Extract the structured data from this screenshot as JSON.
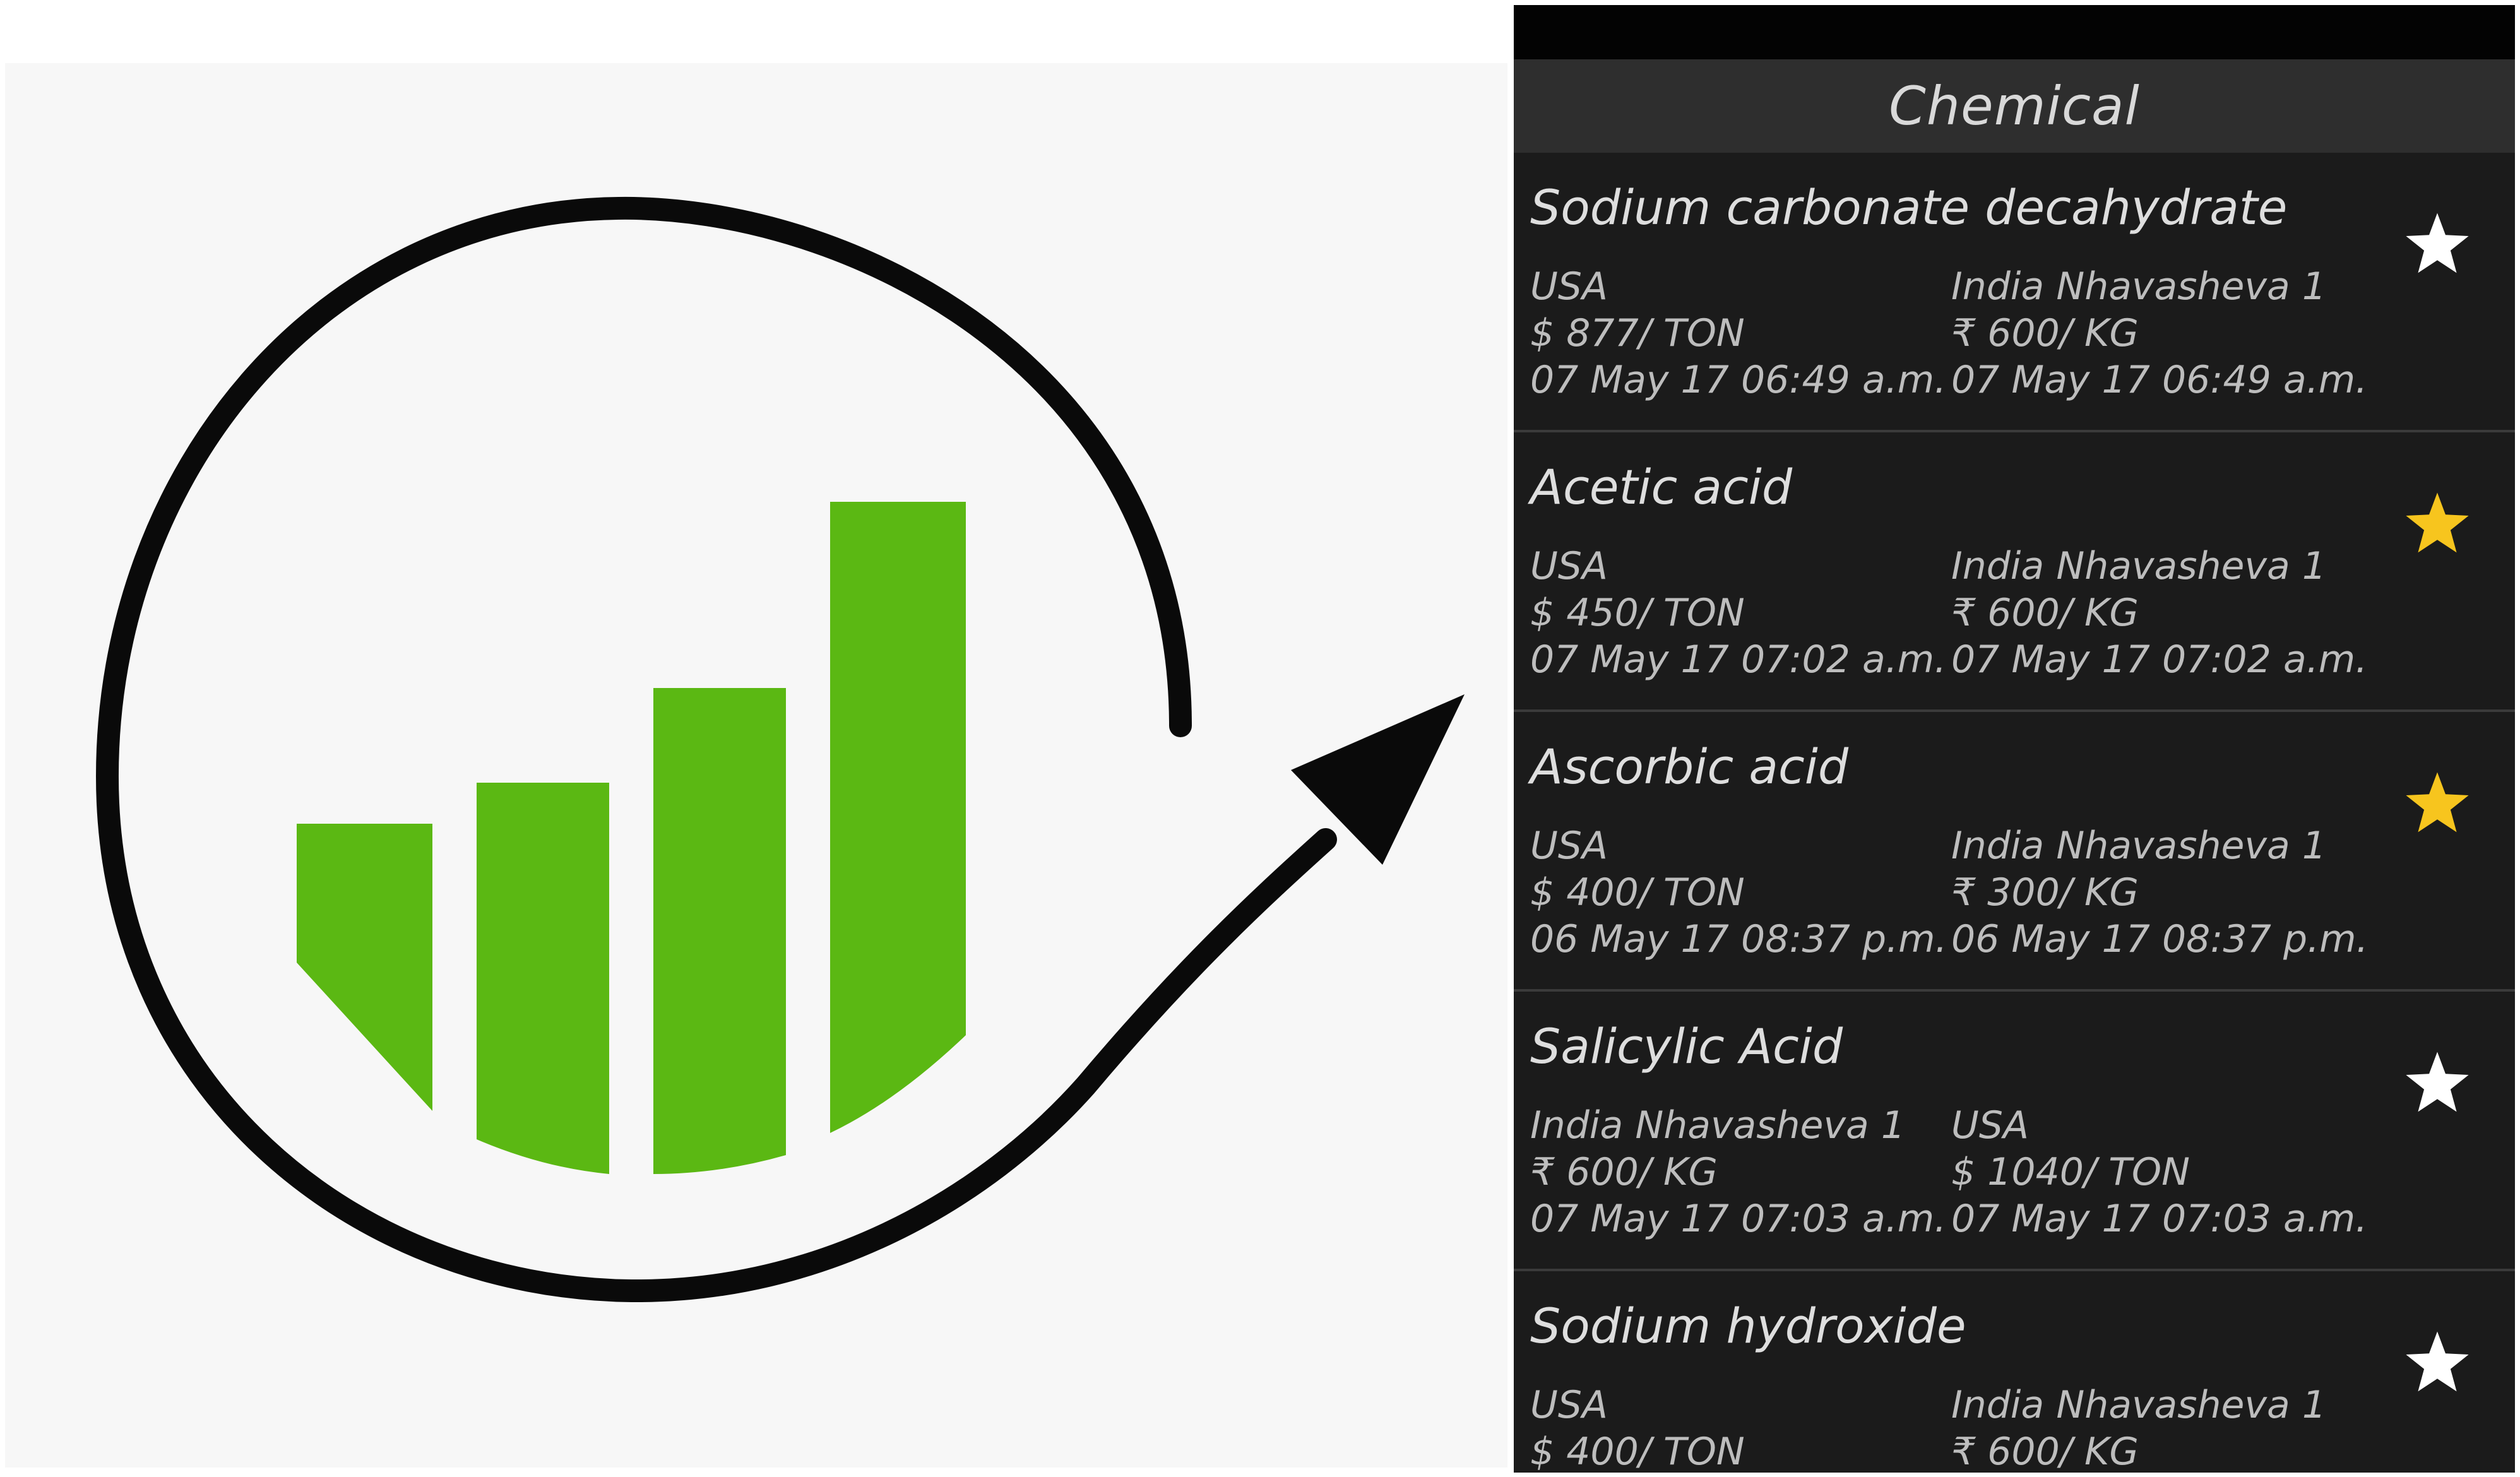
{
  "logo": {
    "bar_color": "#5bb813",
    "arrow_color": "#0a0a0a",
    "bars_icon": "growth-bars-icon",
    "arrow_icon": "circular-arrow-icon"
  },
  "app": {
    "header": {
      "title": "Chemical"
    },
    "star_filled_color": "#f7c51e",
    "star_empty_color": "#ffffff",
    "items": [
      {
        "name": "Sodium carbonate decahydrate",
        "favorite": false,
        "left": {
          "location": "USA",
          "price": "$ 877/ TON",
          "date": "07 May 17 06:49 a.m."
        },
        "right": {
          "location": "India Nhavasheva 1",
          "price": "₹ 600/ KG",
          "date": "07 May 17 06:49 a.m."
        }
      },
      {
        "name": "Acetic acid",
        "favorite": true,
        "left": {
          "location": "USA",
          "price": "$ 450/ TON",
          "date": "07 May 17 07:02 a.m."
        },
        "right": {
          "location": "India Nhavasheva 1",
          "price": "₹ 600/ KG",
          "date": "07 May 17 07:02 a.m."
        }
      },
      {
        "name": "Ascorbic acid",
        "favorite": true,
        "left": {
          "location": "USA",
          "price": "$ 400/ TON",
          "date": "06 May 17 08:37 p.m."
        },
        "right": {
          "location": "India Nhavasheva 1",
          "price": "₹ 300/ KG",
          "date": "06 May 17 08:37 p.m."
        }
      },
      {
        "name": "Salicylic Acid",
        "favorite": false,
        "left": {
          "location": "India Nhavasheva 1",
          "price": "₹ 600/ KG",
          "date": "07 May 17 07:03 a.m."
        },
        "right": {
          "location": "USA",
          "price": "$ 1040/ TON",
          "date": "07 May 17 07:03 a.m."
        }
      },
      {
        "name": "Sodium hydroxide",
        "favorite": false,
        "left": {
          "location": "USA",
          "price": "$ 400/ TON",
          "date": ""
        },
        "right": {
          "location": "India Nhavasheva 1",
          "price": "₹ 600/ KG",
          "date": ""
        }
      }
    ]
  }
}
